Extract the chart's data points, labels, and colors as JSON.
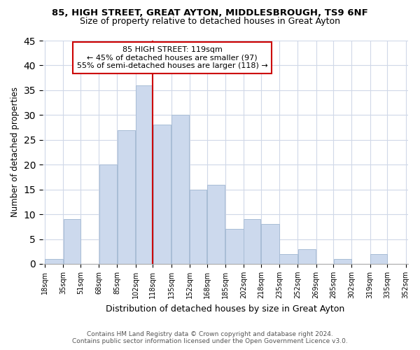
{
  "title1": "85, HIGH STREET, GREAT AYTON, MIDDLESBROUGH, TS9 6NF",
  "title2": "Size of property relative to detached houses in Great Ayton",
  "xlabel": "Distribution of detached houses by size in Great Ayton",
  "ylabel": "Number of detached properties",
  "bar_color": "#ccd9ed",
  "bar_edge_color": "#a8bdd6",
  "vline_value": 118,
  "vline_color": "#cc0000",
  "annotation_title": "85 HIGH STREET: 119sqm",
  "annotation_line1": "← 45% of detached houses are smaller (97)",
  "annotation_line2": "55% of semi-detached houses are larger (118) →",
  "annotation_box_color": "#ffffff",
  "annotation_box_edge": "#cc0000",
  "bins": [
    18,
    35,
    51,
    68,
    85,
    102,
    118,
    135,
    152,
    168,
    185,
    202,
    218,
    235,
    252,
    269,
    285,
    302,
    319,
    335,
    352
  ],
  "counts": [
    1,
    9,
    0,
    20,
    27,
    36,
    28,
    30,
    15,
    16,
    7,
    9,
    8,
    2,
    3,
    0,
    1,
    0,
    2,
    0
  ],
  "ylim": [
    0,
    45
  ],
  "yticks": [
    0,
    5,
    10,
    15,
    20,
    25,
    30,
    35,
    40,
    45
  ],
  "footer1": "Contains HM Land Registry data © Crown copyright and database right 2024.",
  "footer2": "Contains public sector information licensed under the Open Government Licence v3.0.",
  "bg_color": "#ffffff",
  "grid_color": "#d0d8e8"
}
